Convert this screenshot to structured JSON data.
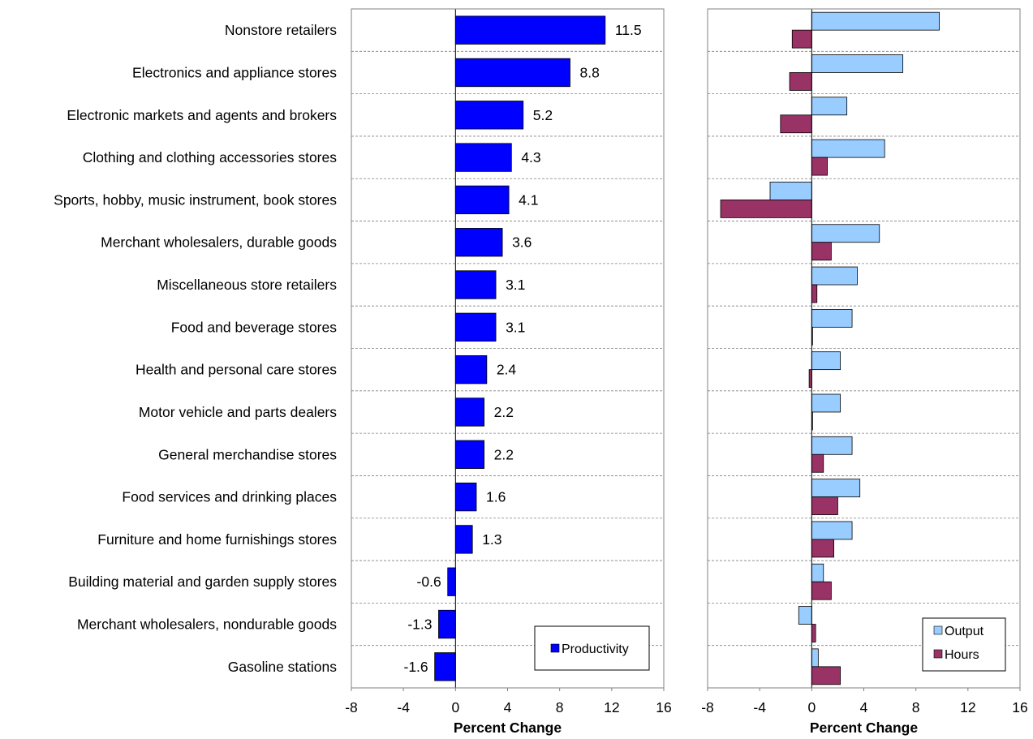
{
  "chart_data": [
    {
      "type": "bar",
      "orientation": "horizontal",
      "categories": [
        "Nonstore retailers",
        "Electronics and appliance stores",
        "Electronic markets and agents and brokers",
        "Clothing and clothing accessories stores",
        "Sports, hobby, music instrument, book stores",
        "Merchant wholesalers, durable goods",
        "Miscellaneous store retailers",
        "Food and beverage stores",
        "Health and personal care stores",
        "Motor vehicle and parts dealers",
        "General merchandise stores",
        "Food services and drinking places",
        "Furniture and home furnishings stores",
        "Building material and garden supply stores",
        "Merchant wholesalers, nondurable goods",
        "Gasoline stations"
      ],
      "series": [
        {
          "name": "Productivity",
          "color": "#0000ff",
          "values": [
            11.5,
            8.8,
            5.2,
            4.3,
            4.1,
            3.6,
            3.1,
            3.1,
            2.4,
            2.2,
            2.2,
            1.6,
            1.3,
            -0.6,
            -1.3,
            -1.6
          ],
          "value_labels": [
            "11.5",
            "8.8",
            "5.2",
            "4.3",
            "4.1",
            "3.6",
            "3.1",
            "3.1",
            "2.4",
            "2.2",
            "2.2",
            "1.6",
            "1.3",
            "-0.6",
            "-1.3",
            "-1.6"
          ]
        }
      ],
      "xlabel": "Percent Change",
      "xlim": [
        -8,
        16
      ],
      "xticks": [
        -8,
        -4,
        0,
        4,
        8,
        12,
        16
      ],
      "xtick_labels": [
        "-8",
        "-4",
        "0",
        "4",
        "8",
        "12",
        "16"
      ],
      "grid": "horizontal-dashed",
      "legend_position": "bottom-right"
    },
    {
      "type": "bar",
      "orientation": "horizontal",
      "series": [
        {
          "name": "Output",
          "color": "#99ccff",
          "values": [
            9.8,
            7.0,
            2.7,
            5.6,
            -3.2,
            5.2,
            3.5,
            3.1,
            2.2,
            2.2,
            3.1,
            3.7,
            3.1,
            0.9,
            -1.0,
            0.5
          ]
        },
        {
          "name": "Hours",
          "color": "#993366",
          "values": [
            -1.5,
            -1.7,
            -2.4,
            1.2,
            -7.0,
            1.5,
            0.4,
            0.0,
            -0.2,
            0.05,
            0.9,
            2.0,
            1.7,
            1.5,
            0.3,
            2.2
          ]
        }
      ],
      "xlabel": "Percent Change",
      "xlim": [
        -8,
        16
      ],
      "xticks": [
        -8,
        -4,
        0,
        4,
        8,
        12,
        16
      ],
      "xtick_labels": [
        "-8",
        "-4",
        "0",
        "4",
        "8",
        "12",
        "16"
      ],
      "grid": "horizontal-dashed",
      "legend_position": "bottom-right"
    }
  ]
}
